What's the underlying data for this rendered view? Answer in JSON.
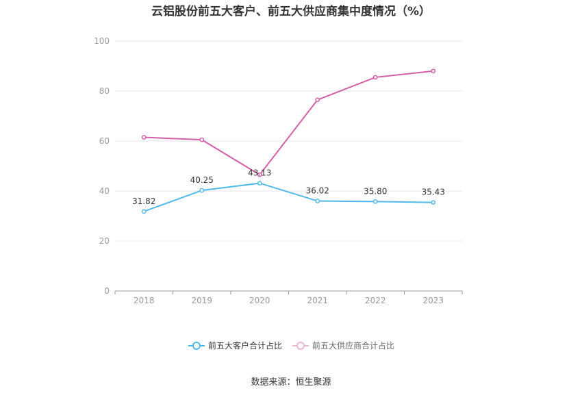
{
  "chart_data": {
    "type": "line",
    "title": "云铝股份前五大客户、前五大供应商集中度情况（%）",
    "categories": [
      "2018",
      "2019",
      "2020",
      "2021",
      "2022",
      "2023"
    ],
    "series": [
      {
        "name": "前五大客户合计占比",
        "color": "#4fb9ea",
        "values": [
          31.82,
          40.25,
          43.13,
          36.02,
          35.8,
          35.43
        ],
        "labels": [
          "31.82",
          "40.25",
          "43.13",
          "36.02",
          "35.80",
          "35.43"
        ]
      },
      {
        "name": "前五大供应商合计占比",
        "color": "#d25ea7",
        "values": [
          61.5,
          60.5,
          46.5,
          76.5,
          85.5,
          88.0
        ]
      }
    ],
    "ylim": [
      0,
      100
    ],
    "yticks": [
      "0",
      "20",
      "40",
      "60",
      "80",
      "100"
    ],
    "grid": true,
    "legend_position": "bottom"
  },
  "source_text": "数据来源：恒生聚源"
}
